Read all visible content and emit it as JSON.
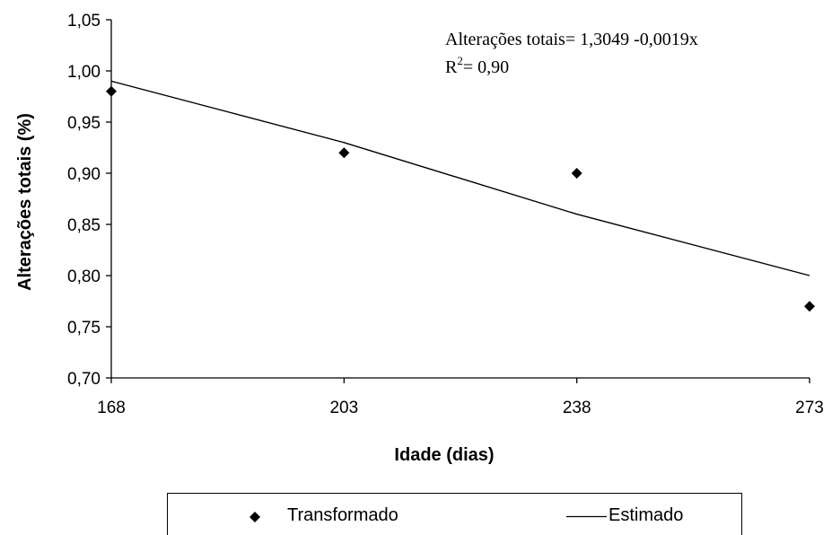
{
  "chart_data": {
    "type": "scatter",
    "x": [
      168,
      203,
      238,
      273
    ],
    "series": [
      {
        "name": "Transformado",
        "kind": "points",
        "marker": "diamond",
        "values": [
          0.98,
          0.92,
          0.9,
          0.77
        ]
      },
      {
        "name": "Estimado",
        "kind": "line",
        "values": [
          0.99,
          0.93,
          0.86,
          0.8
        ]
      }
    ],
    "xlabel": "Idade (dias)",
    "ylabel": "Alterações totais (%)",
    "xlim": [
      168,
      273
    ],
    "ylim": [
      0.7,
      1.05
    ],
    "xticks": [
      "168",
      "203",
      "238",
      "273"
    ],
    "yticks": [
      "0,70",
      "0,75",
      "0,80",
      "0,85",
      "0,90",
      "0,95",
      "1,00",
      "1,05"
    ],
    "annotation": {
      "equation": "Alterações totais= 1,3049 -0,0019x",
      "r2_prefix": "R",
      "r2_sup": "2",
      "r2_value": "= 0,90"
    },
    "grid": false,
    "legend_position": "bottom",
    "colors": {
      "points": "#000000",
      "line": "#000000"
    }
  }
}
